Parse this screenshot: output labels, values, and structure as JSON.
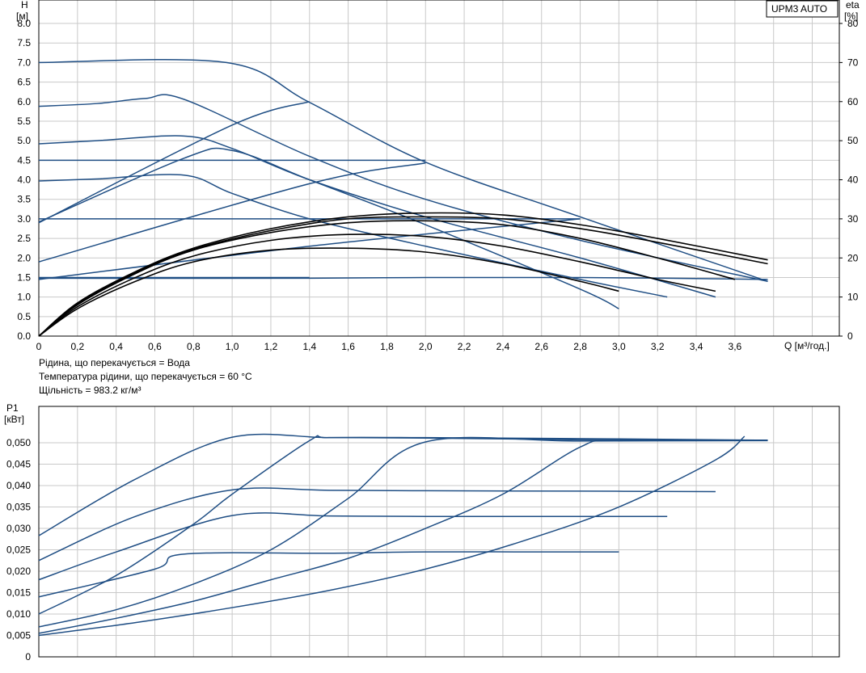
{
  "product_label": "UPM3 AUTO",
  "info_lines": [
    "Рідина, що перекачується = Вода",
    "Температура рідини, що перекачується = 60 °C",
    "Щільність = 983.2 кг/м³"
  ],
  "colors": {
    "curve": "#1f4e84",
    "eta": "#000000",
    "grid": "#c9c9c9"
  },
  "chart_data": [
    {
      "type": "line",
      "xlabel": "Q [м³/год.]",
      "ylabel": "H\n[м]",
      "y2label": "eta\n[%]",
      "xlim": [
        0,
        4.14
      ],
      "ylim": [
        0,
        8.6
      ],
      "y2lim": [
        0,
        86
      ],
      "x_ticks": [
        "0",
        "0,2",
        "0,4",
        "0,6",
        "0,8",
        "1,0",
        "1,2",
        "1,4",
        "1,6",
        "1,8",
        "2,0",
        "2,2",
        "2,4",
        "2,6",
        "2,8",
        "3,0",
        "3,2",
        "3,4",
        "3,6"
      ],
      "y_ticks": [
        "0.0",
        "0.5",
        "1.0",
        "1.5",
        "2.0",
        "2.5",
        "3.0",
        "3.5",
        "4.0",
        "4.5",
        "5.0",
        "5.5",
        "6.0",
        "6.5",
        "7.0",
        "7.5",
        "8.0"
      ],
      "y2_ticks": [
        "0",
        "10",
        "20",
        "30",
        "40",
        "50",
        "60",
        "70",
        "80"
      ],
      "grid": true,
      "series": [
        {
          "axis": "left",
          "x": [
            0,
            0.97,
            1.4,
            2.0,
            2.8,
            3.77
          ],
          "y": [
            7.0,
            7.0,
            5.98,
            4.45,
            3.05,
            1.4
          ]
        },
        {
          "axis": "left",
          "x": [
            0,
            0.3,
            0.55,
            0.75,
            1.4,
            2.0,
            2.8,
            3.77
          ],
          "y": [
            5.88,
            5.95,
            6.08,
            6.06,
            4.6,
            3.5,
            2.45,
            1.4
          ]
        },
        {
          "axis": "left",
          "x": [
            0,
            0.3,
            0.75,
            1.0,
            1.4,
            2.0,
            2.8,
            3.5
          ],
          "y": [
            4.92,
            5.0,
            5.12,
            4.8,
            4.0,
            3.05,
            2.0,
            1.0
          ]
        },
        {
          "axis": "left",
          "x": [
            0,
            2.0
          ],
          "y": [
            4.5,
            4.5
          ]
        },
        {
          "axis": "left",
          "x": [
            0,
            0.3,
            0.75,
            1.0,
            1.4,
            2.0,
            2.8,
            3.25
          ],
          "y": [
            3.97,
            4.02,
            4.12,
            3.65,
            3.0,
            2.3,
            1.45,
            1.0
          ]
        },
        {
          "axis": "left",
          "x": [
            0,
            2.8
          ],
          "y": [
            3.0,
            3.0
          ]
        },
        {
          "axis": "left",
          "x": [
            0,
            0.75,
            1.0,
            1.4,
            2.0,
            2.8,
            3.0
          ],
          "y": [
            2.92,
            4.55,
            4.75,
            4.0,
            2.85,
            1.2,
            0.7
          ]
        },
        {
          "axis": "left",
          "x": [
            0,
            1.4
          ],
          "y": [
            1.5,
            1.5
          ]
        },
        {
          "axis": "left",
          "x": [
            0,
            1.4,
            2.0
          ],
          "y": [
            1.9,
            3.9,
            4.43
          ]
        },
        {
          "axis": "left",
          "x": [
            0,
            1.4,
            2.8
          ],
          "y": [
            1.45,
            2.3,
            3.0
          ]
        },
        {
          "axis": "left",
          "x": [
            0,
            1.4,
            2.0,
            2.8,
            3.77
          ],
          "y": [
            1.48,
            1.48,
            1.5,
            1.5,
            1.45
          ]
        },
        {
          "axis": "left",
          "x": [
            0,
            1.0,
            1.4
          ],
          "y": [
            2.9,
            5.4,
            6.0
          ]
        },
        {
          "axis": "right",
          "x": [
            0,
            0.2,
            0.5,
            0.8,
            1.2,
            1.6,
            2.0,
            2.4,
            2.8,
            3.2,
            3.77
          ],
          "y": [
            0,
            8.5,
            16.5,
            22.5,
            27.5,
            30.5,
            31.5,
            31.0,
            28.5,
            25.0,
            19.5
          ]
        },
        {
          "axis": "right",
          "x": [
            0,
            0.2,
            0.5,
            0.8,
            1.2,
            1.6,
            2.0,
            2.4,
            2.8,
            3.2,
            3.6
          ],
          "y": [
            0,
            8.0,
            16.0,
            22.0,
            26.5,
            29.0,
            29.5,
            28.5,
            25.0,
            20.0,
            14.5
          ]
        },
        {
          "axis": "right",
          "x": [
            0,
            0.2,
            0.5,
            0.8,
            1.2,
            1.6,
            2.0,
            2.4,
            2.8,
            3.2,
            3.5
          ],
          "y": [
            0,
            7.5,
            15.0,
            20.5,
            24.5,
            26.0,
            25.5,
            23.0,
            19.0,
            14.5,
            11.5
          ]
        },
        {
          "axis": "right",
          "x": [
            0,
            0.2,
            0.5,
            0.8,
            1.2,
            1.6,
            2.0,
            2.4,
            2.8,
            3.0
          ],
          "y": [
            0,
            7.0,
            14.0,
            19.0,
            22.0,
            22.5,
            21.5,
            18.5,
            14.0,
            11.5
          ]
        },
        {
          "axis": "right",
          "x": [
            0,
            0.2,
            0.5,
            0.8,
            1.2,
            1.6,
            2.0,
            2.4,
            2.8,
            3.2,
            3.77
          ],
          "y": [
            0,
            8.2,
            16.2,
            22.2,
            27.0,
            30.0,
            30.5,
            30.0,
            27.5,
            24.0,
            18.5
          ]
        }
      ]
    },
    {
      "type": "line",
      "ylabel": "P1\n[кВт]",
      "xlim": [
        0,
        4.14
      ],
      "ylim": [
        0,
        0.0585
      ],
      "y_ticks": [
        "0",
        "0,005",
        "0,010",
        "0,015",
        "0,020",
        "0,025",
        "0,030",
        "0,035",
        "0,040",
        "0,045",
        "0,050"
      ],
      "grid": true,
      "series": [
        {
          "x": [
            0,
            0.5,
            1.0,
            1.5,
            2.0,
            2.8,
            3.77
          ],
          "y": [
            0.0283,
            0.0415,
            0.0513,
            0.0512,
            0.0511,
            0.0507,
            0.0506
          ]
        },
        {
          "x": [
            0,
            0.5,
            1.0,
            1.5,
            2.0,
            2.8,
            3.5
          ],
          "y": [
            0.0225,
            0.0328,
            0.039,
            0.0389,
            0.0388,
            0.0387,
            0.0386
          ]
        },
        {
          "x": [
            0,
            0.4,
            1.0,
            1.5,
            2.0,
            2.8,
            3.25
          ],
          "y": [
            0.018,
            0.0245,
            0.033,
            0.0329,
            0.0328,
            0.0328,
            0.0328
          ]
        },
        {
          "x": [
            0,
            0.6,
            0.75,
            1.5,
            2.0,
            2.8,
            3.0
          ],
          "y": [
            0.014,
            0.0205,
            0.024,
            0.0242,
            0.0245,
            0.0245,
            0.0245
          ]
        },
        {
          "x": [
            0,
            0.4,
            0.8,
            1.0,
            1.4,
            1.5,
            2.0,
            3.0,
            3.77
          ],
          "y": [
            0.01,
            0.019,
            0.031,
            0.038,
            0.0505,
            0.0512,
            0.0512,
            0.0509,
            0.0506
          ]
        },
        {
          "x": [
            0,
            0.4,
            0.8,
            1.2,
            1.6,
            2.0,
            2.8,
            3.77
          ],
          "y": [
            0.007,
            0.011,
            0.017,
            0.025,
            0.037,
            0.0502,
            0.0504,
            0.0505
          ]
        },
        {
          "x": [
            0,
            0.4,
            0.8,
            1.2,
            1.6,
            2.0,
            2.4,
            2.8,
            3.0,
            3.77
          ],
          "y": [
            0.0055,
            0.009,
            0.013,
            0.018,
            0.023,
            0.03,
            0.038,
            0.049,
            0.0505,
            0.0506
          ]
        },
        {
          "x": [
            0,
            0.5,
            1.0,
            1.5,
            2.0,
            2.5,
            3.0,
            3.5,
            3.65
          ],
          "y": [
            0.005,
            0.008,
            0.0115,
            0.0155,
            0.0205,
            0.027,
            0.035,
            0.046,
            0.0515
          ]
        }
      ]
    }
  ]
}
